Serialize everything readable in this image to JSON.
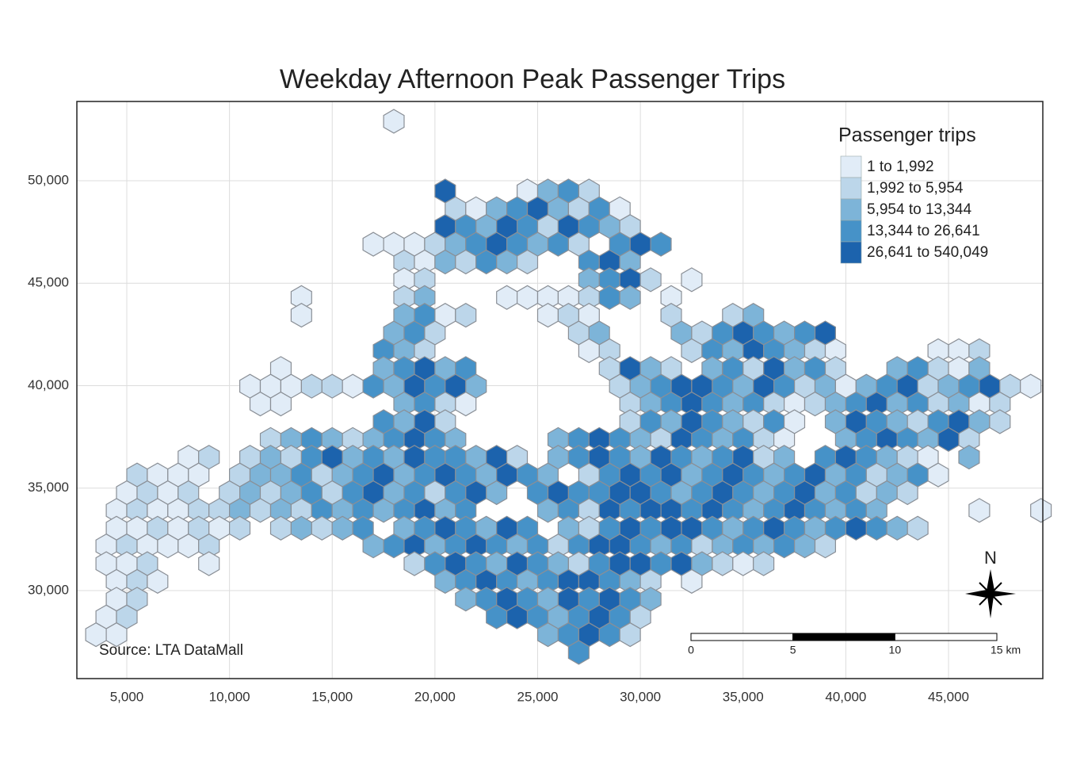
{
  "map": {
    "title": "Weekday Afternoon Peak Passenger Trips",
    "source": "Source: LTA DataMall",
    "xlim": [
      2570,
      49590
    ],
    "ylim": [
      25706,
      53868
    ],
    "xticks": [
      {
        "value": 5000,
        "label": "5,000"
      },
      {
        "value": 10000,
        "label": "10,000"
      },
      {
        "value": 15000,
        "label": "15,000"
      },
      {
        "value": 20000,
        "label": "20,000"
      },
      {
        "value": 25000,
        "label": "25,000"
      },
      {
        "value": 30000,
        "label": "30,000"
      },
      {
        "value": 35000,
        "label": "35,000"
      },
      {
        "value": 40000,
        "label": "40,000"
      },
      {
        "value": 45000,
        "label": "45,000"
      }
    ],
    "yticks": [
      {
        "value": 30000,
        "label": "30,000"
      },
      {
        "value": 35000,
        "label": "35,000"
      },
      {
        "value": 40000,
        "label": "40,000"
      },
      {
        "value": 45000,
        "label": "45,000"
      },
      {
        "value": 50000,
        "label": "50,000"
      }
    ],
    "grid": true,
    "legend": {
      "title": "Passenger trips",
      "labels": [
        "1 to 1,992",
        "1,992 to 5,954",
        "5,954 to 13,344",
        "13,344 to 26,641",
        "26,641 to 540,049"
      ],
      "colors": [
        "#e1ecf7",
        "#bcd6ea",
        "#7db4d8",
        "#4692c8",
        "#1c63ad"
      ]
    },
    "north": "N",
    "scale_bar": {
      "ticks": [
        0,
        5,
        {
          "value": 10,
          "label": "10"
        },
        {
          "value": 15,
          "label": "15 km"
        }
      ]
    },
    "hex_width": 1000,
    "hex_rows": [
      {
        "y": 52900,
        "x0": 18000,
        "classes": [
          1
        ]
      },
      {
        "y": 49500,
        "x0": 20500,
        "classes": [
          5,
          null,
          null,
          null,
          1,
          3,
          4,
          2
        ]
      },
      {
        "y": 48634,
        "x0": 21000,
        "classes": [
          2,
          1,
          3,
          4,
          5,
          3,
          2,
          4,
          1
        ]
      },
      {
        "y": 47768,
        "x0": 20500,
        "classes": [
          5,
          4,
          3,
          5,
          4,
          2,
          5,
          4,
          3,
          2
        ]
      },
      {
        "y": 46902,
        "x0": 17000,
        "classes": [
          1,
          1,
          1,
          2,
          3,
          4,
          5,
          4,
          3,
          4,
          2,
          null,
          4,
          5,
          4
        ]
      },
      {
        "y": 46036,
        "x0": 18500,
        "classes": [
          2,
          1,
          3,
          2,
          4,
          3,
          2,
          null,
          null,
          4,
          5,
          3
        ]
      },
      {
        "y": 45170,
        "x0": 18500,
        "classes": [
          1,
          2,
          null,
          null,
          null,
          null,
          null,
          null,
          null,
          3,
          4,
          5,
          2,
          null,
          1
        ]
      },
      {
        "y": 44304,
        "x0": 13500,
        "classes": [
          1,
          null,
          null,
          null,
          null,
          2,
          3,
          null,
          null,
          null,
          1,
          1,
          1,
          1,
          2,
          4,
          3,
          null,
          1
        ]
      },
      {
        "y": 43438,
        "x0": 13500,
        "classes": [
          1,
          null,
          null,
          null,
          null,
          3,
          4,
          1,
          2,
          null,
          null,
          null,
          1,
          2,
          1,
          null,
          null,
          null,
          2,
          null,
          null,
          2,
          3
        ]
      },
      {
        "y": 42572,
        "x0": 18000,
        "classes": [
          3,
          4,
          2,
          null,
          null,
          null,
          null,
          null,
          null,
          2,
          3,
          null,
          null,
          null,
          3,
          2,
          4,
          5,
          4,
          3,
          4,
          5
        ]
      },
      {
        "y": 41706,
        "x0": 17500,
        "classes": [
          4,
          3,
          2,
          null,
          null,
          null,
          null,
          null,
          null,
          null,
          1,
          2,
          null,
          null,
          null,
          2,
          4,
          3,
          5,
          4,
          3,
          2,
          1,
          null,
          null,
          null,
          null,
          1,
          1,
          2
        ]
      },
      {
        "y": 40840,
        "x0": 12500,
        "classes": [
          1,
          null,
          null,
          null,
          null,
          3,
          4,
          5,
          3,
          4,
          null,
          null,
          null,
          null,
          null,
          null,
          2,
          5,
          3,
          2,
          null,
          3,
          4,
          2,
          5,
          3,
          4,
          2,
          null,
          null,
          3,
          4,
          2,
          1,
          3
        ]
      },
      {
        "y": 39974,
        "x0": 11000,
        "classes": [
          1,
          1,
          1,
          2,
          2,
          1,
          4,
          3,
          5,
          4,
          5,
          3,
          null,
          null,
          null,
          null,
          null,
          null,
          2,
          3,
          4,
          5,
          5,
          4,
          3,
          5,
          4,
          2,
          3,
          1,
          3,
          4,
          5,
          2,
          3,
          4,
          5,
          2,
          1
        ]
      },
      {
        "y": 39108,
        "x0": 11500,
        "classes": [
          1,
          1,
          null,
          null,
          null,
          null,
          null,
          3,
          4,
          2,
          1,
          null,
          null,
          null,
          null,
          null,
          null,
          null,
          2,
          3,
          4,
          5,
          4,
          3,
          4,
          2,
          1,
          2,
          3,
          4,
          5,
          3,
          4,
          2,
          3,
          1,
          2
        ]
      },
      {
        "y": 38242,
        "x0": 17500,
        "classes": [
          4,
          3,
          5,
          2,
          null,
          null,
          null,
          null,
          null,
          null,
          null,
          null,
          2,
          4,
          3,
          5,
          4,
          3,
          2,
          4,
          1,
          null,
          3,
          5,
          4,
          3,
          2,
          4,
          5,
          3,
          2
        ]
      },
      {
        "y": 37376,
        "x0": 12000,
        "classes": [
          2,
          3,
          4,
          3,
          2,
          3,
          4,
          5,
          4,
          3,
          null,
          null,
          null,
          null,
          3,
          4,
          5,
          4,
          3,
          2,
          5,
          4,
          3,
          4,
          2,
          1,
          null,
          null,
          3,
          4,
          5,
          4,
          3,
          5,
          2
        ]
      },
      {
        "y": 36510,
        "x0": 8000,
        "classes": [
          1,
          2,
          null,
          2,
          3,
          2,
          4,
          5,
          3,
          4,
          3,
          5,
          4,
          4,
          3,
          5,
          2,
          null,
          3,
          4,
          5,
          4,
          3,
          5,
          4,
          3,
          4,
          5,
          2,
          3,
          null,
          4,
          5,
          4,
          3,
          2,
          1,
          null,
          3
        ]
      },
      {
        "y": 35644,
        "x0": 5500,
        "classes": [
          2,
          1,
          1,
          1,
          null,
          2,
          3,
          3,
          4,
          2,
          3,
          4,
          5,
          3,
          4,
          5,
          4,
          3,
          5,
          4,
          3,
          null,
          2,
          4,
          5,
          4,
          5,
          3,
          4,
          5,
          4,
          3,
          4,
          5,
          3,
          4,
          2,
          3,
          4,
          1
        ]
      },
      {
        "y": 34778,
        "x0": 5000,
        "classes": [
          1,
          2,
          1,
          2,
          null,
          2,
          3,
          2,
          3,
          4,
          2,
          4,
          5,
          3,
          4,
          2,
          4,
          5,
          3,
          null,
          4,
          5,
          4,
          4,
          5,
          5,
          4,
          3,
          4,
          5,
          4,
          3,
          4,
          5,
          3,
          4,
          2,
          3,
          2
        ]
      },
      {
        "y": 33912,
        "x0": 4500,
        "classes": [
          1,
          2,
          1,
          1,
          2,
          2,
          3,
          2,
          3,
          2,
          4,
          3,
          4,
          3,
          4,
          5,
          3,
          4,
          null,
          null,
          null,
          3,
          4,
          2,
          5,
          4,
          5,
          5,
          4,
          5,
          4,
          3,
          4,
          5,
          4,
          3,
          4,
          3,
          null,
          null,
          null,
          null,
          1,
          null,
          null,
          1
        ]
      },
      {
        "y": 33046,
        "x0": 4500,
        "classes": [
          1,
          1,
          2,
          1,
          2,
          1,
          2,
          null,
          2,
          3,
          2,
          3,
          4,
          null,
          3,
          4,
          5,
          4,
          3,
          5,
          4,
          null,
          3,
          2,
          4,
          5,
          4,
          5,
          5,
          4,
          3,
          4,
          5,
          4,
          3,
          4,
          5,
          4,
          3,
          2
        ]
      },
      {
        "y": 32180,
        "x0": 4000,
        "classes": [
          1,
          2,
          1,
          1,
          1,
          2,
          null,
          null,
          null,
          null,
          null,
          null,
          null,
          3,
          4,
          5,
          3,
          4,
          5,
          4,
          3,
          4,
          2,
          4,
          5,
          5,
          4,
          3,
          4,
          2,
          3,
          4,
          3,
          4,
          3,
          2
        ]
      },
      {
        "y": 31314,
        "x0": 4000,
        "classes": [
          1,
          1,
          2,
          null,
          null,
          1,
          null,
          null,
          null,
          null,
          null,
          null,
          null,
          null,
          null,
          2,
          4,
          5,
          4,
          3,
          5,
          4,
          3,
          2,
          4,
          5,
          5,
          4,
          5,
          3,
          2,
          1,
          2
        ]
      },
      {
        "y": 30448,
        "x0": 4500,
        "classes": [
          1,
          2,
          1,
          null,
          null,
          null,
          null,
          null,
          null,
          null,
          null,
          null,
          null,
          null,
          null,
          null,
          3,
          4,
          5,
          4,
          3,
          4,
          5,
          5,
          4,
          3,
          2,
          null,
          1
        ]
      },
      {
        "y": 29582,
        "x0": 4500,
        "classes": [
          1,
          2,
          null,
          null,
          null,
          null,
          null,
          null,
          null,
          null,
          null,
          null,
          null,
          null,
          null,
          null,
          null,
          3,
          4,
          5,
          4,
          3,
          5,
          4,
          5,
          4,
          3
        ]
      },
      {
        "y": 28716,
        "x0": 4000,
        "classes": [
          1,
          2,
          null,
          null,
          null,
          null,
          null,
          null,
          null,
          null,
          null,
          null,
          null,
          null,
          null,
          null,
          null,
          null,
          null,
          4,
          5,
          4,
          3,
          4,
          5,
          4,
          2
        ]
      },
      {
        "y": 27850,
        "x0": 3500,
        "classes": [
          1,
          1,
          null,
          null,
          null,
          null,
          null,
          null,
          null,
          null,
          null,
          null,
          null,
          null,
          null,
          null,
          null,
          null,
          null,
          null,
          null,
          null,
          3,
          4,
          5,
          4,
          2
        ]
      },
      {
        "y": 26984,
        "x0": 27000,
        "classes": [
          4
        ]
      }
    ]
  }
}
